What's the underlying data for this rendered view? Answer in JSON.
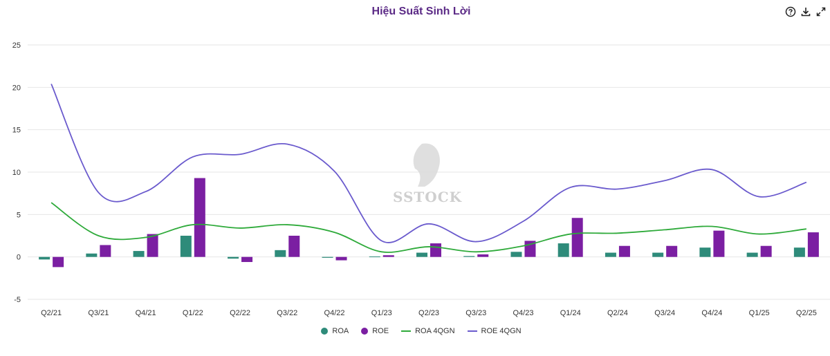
{
  "chart_data": {
    "type": "bar",
    "title": "Hiệu Suất Sinh Lời",
    "categories": [
      "Q2/21",
      "Q3/21",
      "Q4/21",
      "Q1/22",
      "Q2/22",
      "Q3/22",
      "Q4/22",
      "Q1/23",
      "Q2/23",
      "Q3/23",
      "Q4/23",
      "Q1/24",
      "Q2/24",
      "Q3/24",
      "Q4/24",
      "Q1/25",
      "Q2/25"
    ],
    "ylim": [
      -5,
      25
    ],
    "yticks": [
      -5,
      0,
      5,
      10,
      15,
      20,
      25
    ],
    "grid": true,
    "legend_position": "bottom-center",
    "series": [
      {
        "name": "ROA",
        "kind": "bar",
        "color": "#2e8b7a",
        "values": [
          -0.3,
          0.4,
          0.7,
          2.5,
          -0.2,
          0.8,
          -0.1,
          0.05,
          0.5,
          0.1,
          0.6,
          1.6,
          0.5,
          0.5,
          1.1,
          0.5,
          1.1
        ]
      },
      {
        "name": "ROE",
        "kind": "bar",
        "color": "#7b1fa2",
        "values": [
          -1.2,
          1.4,
          2.7,
          9.3,
          -0.6,
          2.5,
          -0.4,
          0.2,
          1.6,
          0.3,
          1.9,
          4.6,
          1.3,
          1.3,
          3.1,
          1.3,
          2.9
        ]
      },
      {
        "name": "ROA 4QGN",
        "kind": "line",
        "color": "#2eaa3a",
        "values": [
          6.4,
          2.5,
          2.3,
          3.8,
          3.4,
          3.8,
          2.9,
          0.6,
          1.2,
          0.6,
          1.3,
          2.7,
          2.8,
          3.2,
          3.6,
          2.7,
          3.3
        ]
      },
      {
        "name": "ROE 4QGN",
        "kind": "line",
        "color": "#6a5acd",
        "values": [
          20.4,
          7.6,
          7.7,
          11.8,
          12.1,
          13.3,
          10.1,
          1.9,
          3.9,
          1.8,
          4.2,
          8.2,
          8.0,
          9.0,
          10.3,
          7.1,
          8.8
        ]
      }
    ]
  },
  "watermark": {
    "text": "SSTOCK"
  },
  "toolbar": {
    "help_icon": "question-circle-icon",
    "download_icon": "download-icon",
    "expand_icon": "expand-icon"
  }
}
